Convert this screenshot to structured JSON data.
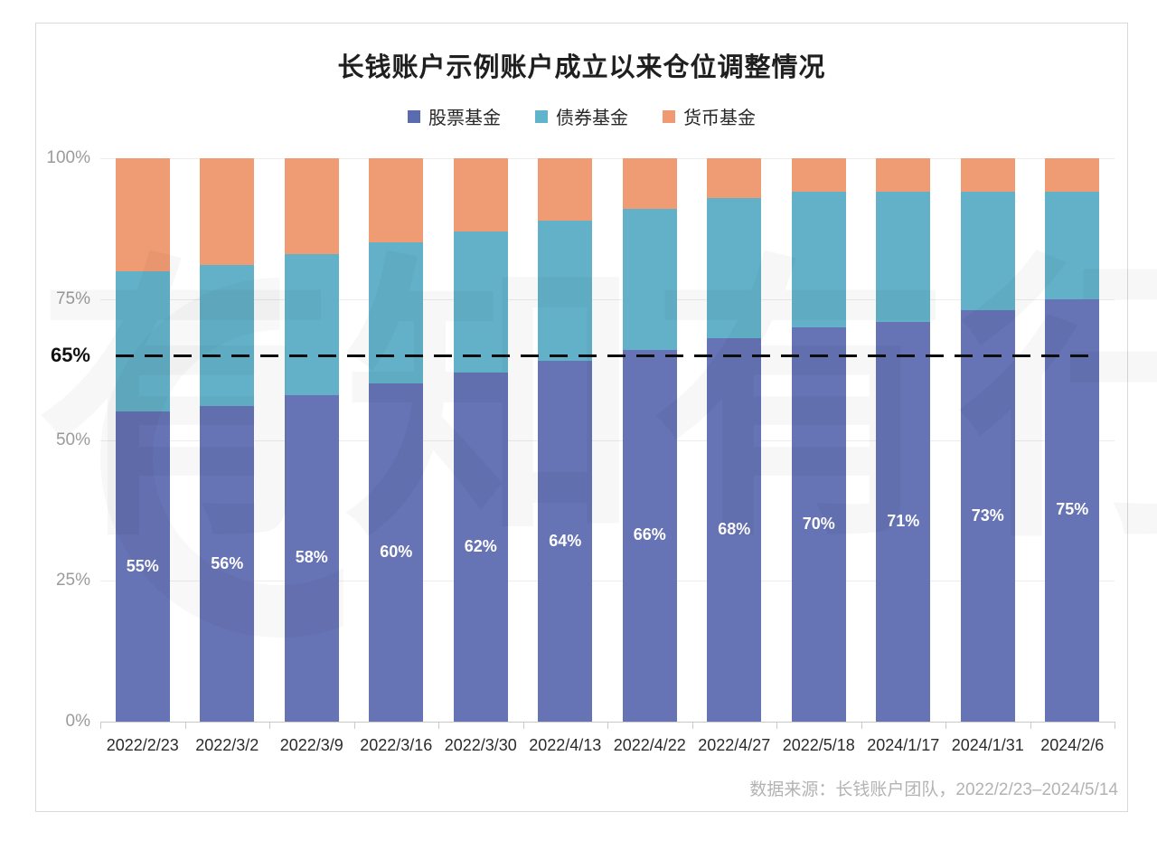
{
  "title": "长钱账户示例账户成立以来仓位调整情况",
  "legend": [
    {
      "label": "股票基金",
      "color": "#5b6bb0"
    },
    {
      "label": "债券基金",
      "color": "#5fb3cb"
    },
    {
      "label": "货币基金",
      "color": "#ef9a73"
    }
  ],
  "source_note": "数据来源：长钱账户团队，2022/2/23–2024/5/14",
  "watermark_text": "有知有行",
  "chart_data": {
    "type": "bar",
    "stacked": true,
    "title": "长钱账户示例账户成立以来仓位调整情况",
    "categories": [
      "2022/2/23",
      "2022/3/2",
      "2022/3/9",
      "2022/3/16",
      "2022/3/30",
      "2022/4/13",
      "2022/4/22",
      "2022/4/27",
      "2022/5/18",
      "2024/1/17",
      "2024/1/31",
      "2024/2/6"
    ],
    "series": [
      {
        "name": "股票基金",
        "key": "stock",
        "color": "#6673b4",
        "values": [
          55,
          56,
          58,
          60,
          62,
          64,
          66,
          68,
          70,
          71,
          73,
          75
        ],
        "labels": [
          "55%",
          "56%",
          "58%",
          "60%",
          "62%",
          "64%",
          "66%",
          "68%",
          "70%",
          "71%",
          "73%",
          "75%"
        ]
      },
      {
        "name": "债券基金",
        "key": "bond",
        "color": "#63b1c9",
        "values": [
          25,
          25,
          25,
          25,
          25,
          25,
          25,
          25,
          24,
          23,
          21,
          19
        ]
      },
      {
        "name": "货币基金",
        "key": "money",
        "color": "#ef9b74",
        "values": [
          20,
          19,
          17,
          15,
          13,
          11,
          9,
          7,
          6,
          6,
          6,
          6
        ]
      }
    ],
    "ylim": [
      0,
      100
    ],
    "y_ticks": [
      {
        "label": "100%",
        "value": 100
      },
      {
        "label": "75%",
        "value": 75
      },
      {
        "label": "65%",
        "value": 65,
        "bold": true
      },
      {
        "label": "50%",
        "value": 50
      },
      {
        "label": "25%",
        "value": 25
      },
      {
        "label": "0%",
        "value": 0
      }
    ],
    "gridline_values": [
      25,
      50,
      75,
      100
    ],
    "reference_line": {
      "value": 65,
      "label": "65%",
      "style": "dashed",
      "color": "#111111"
    },
    "legend_position": "top",
    "grid": true
  }
}
